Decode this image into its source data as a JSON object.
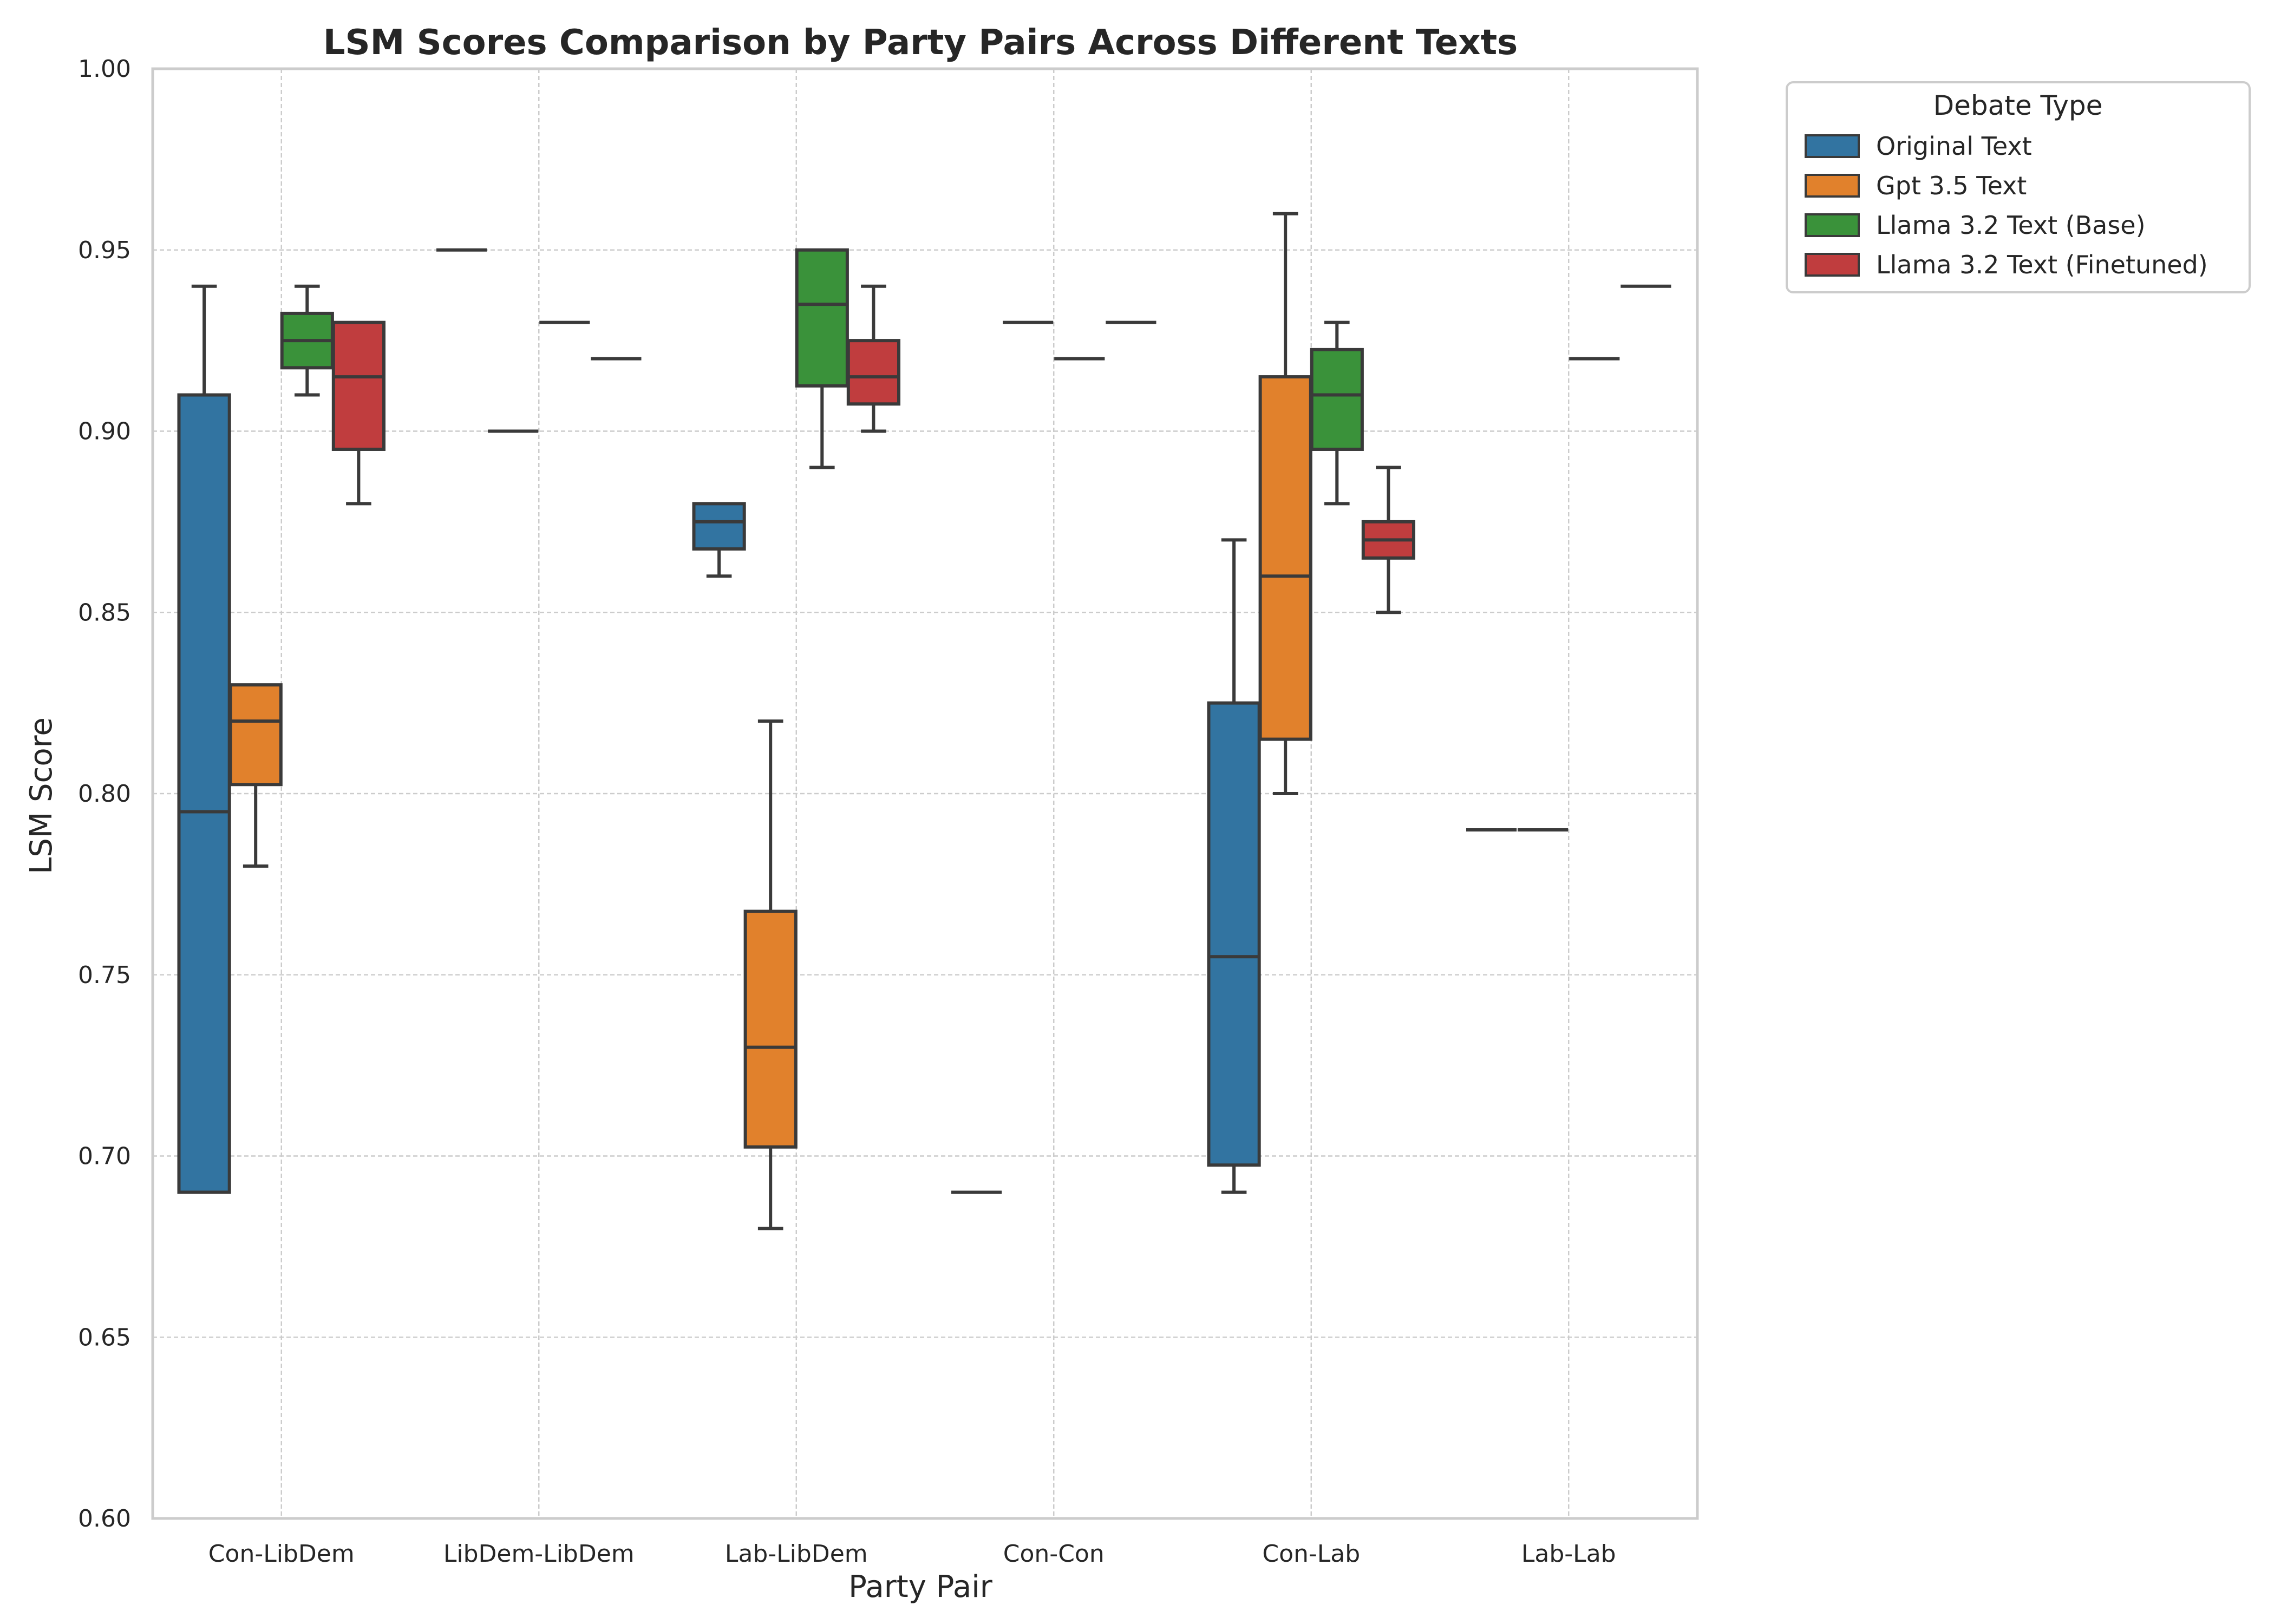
{
  "chart_data": {
    "type": "box",
    "title": "LSM Scores Comparison by Party Pairs Across Different Texts",
    "xlabel": "Party Pair",
    "ylabel": "LSM Score",
    "ylim": [
      0.6,
      1.0
    ],
    "yticks": [
      "0.60",
      "0.65",
      "0.70",
      "0.75",
      "0.80",
      "0.85",
      "0.90",
      "0.95",
      "1.00"
    ],
    "grid": true,
    "categories": [
      "Con-LibDem",
      "LibDem-LibDem",
      "Lab-LibDem",
      "Con-Con",
      "Con-Lab",
      "Lab-Lab"
    ],
    "legend": {
      "title": "Debate Type",
      "position": "outside-right"
    },
    "series": [
      {
        "name": "Original Text",
        "color": "#3274a1",
        "boxes": [
          {
            "whislo": 0.69,
            "q1": 0.69,
            "med": 0.795,
            "q3": 0.91,
            "whishi": 0.94
          },
          {
            "whislo": 0.95,
            "q1": 0.95,
            "med": 0.95,
            "q3": 0.95,
            "whishi": 0.95
          },
          {
            "whislo": 0.86,
            "q1": 0.8675,
            "med": 0.875,
            "q3": 0.88,
            "whishi": 0.88
          },
          {
            "whislo": 0.69,
            "q1": 0.69,
            "med": 0.69,
            "q3": 0.69,
            "whishi": 0.69
          },
          {
            "whislo": 0.69,
            "q1": 0.6975,
            "med": 0.755,
            "q3": 0.825,
            "whishi": 0.87
          },
          {
            "whislo": 0.79,
            "q1": 0.79,
            "med": 0.79,
            "q3": 0.79,
            "whishi": 0.79
          }
        ]
      },
      {
        "name": "Gpt 3.5 Text",
        "color": "#e1812c",
        "boxes": [
          {
            "whislo": 0.78,
            "q1": 0.8025,
            "med": 0.82,
            "q3": 0.83,
            "whishi": 0.83
          },
          {
            "whislo": 0.9,
            "q1": 0.9,
            "med": 0.9,
            "q3": 0.9,
            "whishi": 0.9
          },
          {
            "whislo": 0.68,
            "q1": 0.7025,
            "med": 0.73,
            "q3": 0.7675,
            "whishi": 0.82
          },
          {
            "whislo": 0.93,
            "q1": 0.93,
            "med": 0.93,
            "q3": 0.93,
            "whishi": 0.93
          },
          {
            "whislo": 0.8,
            "q1": 0.815,
            "med": 0.86,
            "q3": 0.915,
            "whishi": 0.96
          },
          {
            "whislo": 0.79,
            "q1": 0.79,
            "med": 0.79,
            "q3": 0.79,
            "whishi": 0.79
          }
        ]
      },
      {
        "name": "Llama 3.2 Text (Base)",
        "color": "#3a923a",
        "boxes": [
          {
            "whislo": 0.91,
            "q1": 0.9175,
            "med": 0.925,
            "q3": 0.9325,
            "whishi": 0.94
          },
          {
            "whislo": 0.93,
            "q1": 0.93,
            "med": 0.93,
            "q3": 0.93,
            "whishi": 0.93
          },
          {
            "whislo": 0.89,
            "q1": 0.9125,
            "med": 0.935,
            "q3": 0.95,
            "whishi": 0.95
          },
          {
            "whislo": 0.92,
            "q1": 0.92,
            "med": 0.92,
            "q3": 0.92,
            "whishi": 0.92
          },
          {
            "whislo": 0.88,
            "q1": 0.895,
            "med": 0.91,
            "q3": 0.9225,
            "whishi": 0.93
          },
          {
            "whislo": 0.92,
            "q1": 0.92,
            "med": 0.92,
            "q3": 0.92,
            "whishi": 0.92
          }
        ]
      },
      {
        "name": "Llama 3.2 Text (Finetuned)",
        "color": "#c03d3e",
        "boxes": [
          {
            "whislo": 0.88,
            "q1": 0.895,
            "med": 0.915,
            "q3": 0.93,
            "whishi": 0.93
          },
          {
            "whislo": 0.92,
            "q1": 0.92,
            "med": 0.92,
            "q3": 0.92,
            "whishi": 0.92
          },
          {
            "whislo": 0.9,
            "q1": 0.9075,
            "med": 0.915,
            "q3": 0.925,
            "whishi": 0.94
          },
          {
            "whislo": 0.93,
            "q1": 0.93,
            "med": 0.93,
            "q3": 0.93,
            "whishi": 0.93
          },
          {
            "whislo": 0.85,
            "q1": 0.865,
            "med": 0.87,
            "q3": 0.875,
            "whishi": 0.89
          },
          {
            "whislo": 0.94,
            "q1": 0.94,
            "med": 0.94,
            "q3": 0.94,
            "whishi": 0.94
          }
        ]
      }
    ]
  }
}
